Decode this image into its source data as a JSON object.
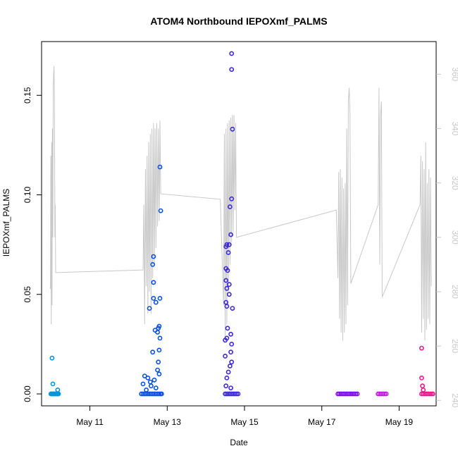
{
  "chart_data": {
    "type": "scatter",
    "title": "ATOM4 Northbound IEPOXmf_PALMS",
    "xlabel": "Date",
    "ylabel": "IEPOXmf_PALMS",
    "x_axis": {
      "type": "date",
      "range": [
        "2018-05-09T18:00",
        "2018-05-19T23:00"
      ],
      "ticks": [
        {
          "value": "2018-05-11",
          "label": "May 11"
        },
        {
          "value": "2018-05-13",
          "label": "May 13"
        },
        {
          "value": "2018-05-15",
          "label": "May 15"
        },
        {
          "value": "2018-05-17",
          "label": "May 17"
        },
        {
          "value": "2018-05-19",
          "label": "May 19"
        }
      ]
    },
    "y_axis": {
      "range": [
        -0.006,
        0.177
      ],
      "ticks": [
        {
          "value": 0.0,
          "label": "0.00"
        },
        {
          "value": 0.05,
          "label": "0.05"
        },
        {
          "value": 0.1,
          "label": "0.10"
        },
        {
          "value": 0.15,
          "label": "0.15"
        }
      ]
    },
    "y2_axis": {
      "range": [
        238,
        372
      ],
      "color": "#c8c8c8",
      "ticks": [
        {
          "value": 240,
          "label": "240"
        },
        {
          "value": 260,
          "label": "260"
        },
        {
          "value": 280,
          "label": "280"
        },
        {
          "value": 300,
          "label": "300"
        },
        {
          "value": 320,
          "label": "320"
        },
        {
          "value": 340,
          "label": "340"
        },
        {
          "value": 360,
          "label": "360"
        }
      ]
    },
    "grid": false,
    "legend": "none",
    "series": [
      {
        "color": "#0096dc",
        "points": [
          [
            "2018-05-10T00:30",
            0.018
          ],
          [
            "2018-05-10T01:00",
            0.005
          ],
          [
            "2018-05-10T04:00",
            0.002
          ],
          [
            "2018-05-09T23:50",
            0.0
          ],
          [
            "2018-05-10T00:10",
            0.0
          ],
          [
            "2018-05-10T00:40",
            0.0
          ],
          [
            "2018-05-10T01:10",
            0.0
          ],
          [
            "2018-05-10T01:40",
            0.0
          ],
          [
            "2018-05-10T02:10",
            0.0
          ],
          [
            "2018-05-10T02:40",
            0.0
          ],
          [
            "2018-05-10T03:10",
            0.0
          ],
          [
            "2018-05-10T03:40",
            0.0
          ],
          [
            "2018-05-10T04:10",
            0.0
          ],
          [
            "2018-05-10T04:30",
            0.0
          ]
        ]
      },
      {
        "color": "#0a50e6",
        "points": [
          [
            "2018-05-12T19:30",
            0.114
          ],
          [
            "2018-05-12T20:00",
            0.092
          ],
          [
            "2018-05-12T15:30",
            0.069
          ],
          [
            "2018-05-12T15:00",
            0.065
          ],
          [
            "2018-05-12T15:30",
            0.056
          ],
          [
            "2018-05-12T15:30",
            0.048
          ],
          [
            "2018-05-12T19:30",
            0.048
          ],
          [
            "2018-05-12T17:00",
            0.046
          ],
          [
            "2018-05-12T13:00",
            0.043
          ],
          [
            "2018-05-12T19:00",
            0.034
          ],
          [
            "2018-05-12T18:30",
            0.033
          ],
          [
            "2018-05-12T16:30",
            0.032
          ],
          [
            "2018-05-12T18:00",
            0.031
          ],
          [
            "2018-05-12T19:30",
            0.028
          ],
          [
            "2018-05-12T19:00",
            0.022
          ],
          [
            "2018-05-12T15:00",
            0.021
          ],
          [
            "2018-05-12T18:30",
            0.016
          ],
          [
            "2018-05-12T18:00",
            0.012
          ],
          [
            "2018-05-12T19:00",
            0.01
          ],
          [
            "2018-05-12T10:00",
            0.009
          ],
          [
            "2018-05-12T12:00",
            0.008
          ],
          [
            "2018-05-12T16:00",
            0.007
          ],
          [
            "2018-05-12T13:30",
            0.006
          ],
          [
            "2018-05-12T09:00",
            0.005
          ],
          [
            "2018-05-12T14:00",
            0.004
          ],
          [
            "2018-05-12T17:00",
            0.003
          ],
          [
            "2018-05-12T11:00",
            0.002
          ],
          [
            "2018-05-12T08:00",
            0.0
          ],
          [
            "2018-05-12T09:00",
            0.0
          ],
          [
            "2018-05-12T10:00",
            0.0
          ],
          [
            "2018-05-12T11:00",
            0.0
          ],
          [
            "2018-05-12T12:00",
            0.0
          ],
          [
            "2018-05-12T13:00",
            0.0
          ],
          [
            "2018-05-12T14:00",
            0.0
          ],
          [
            "2018-05-12T15:00",
            0.0
          ],
          [
            "2018-05-12T16:00",
            0.0
          ],
          [
            "2018-05-12T17:00",
            0.0
          ],
          [
            "2018-05-12T18:00",
            0.0
          ],
          [
            "2018-05-12T19:00",
            0.0
          ],
          [
            "2018-05-12T20:00",
            0.0
          ],
          [
            "2018-05-12T20:30",
            0.0
          ]
        ]
      },
      {
        "color": "#3c28dc",
        "points": [
          [
            "2018-05-14T16:00",
            0.171
          ],
          [
            "2018-05-14T16:00",
            0.163
          ],
          [
            "2018-05-14T16:30",
            0.133
          ],
          [
            "2018-05-14T16:00",
            0.098
          ],
          [
            "2018-05-14T15:00",
            0.094
          ],
          [
            "2018-05-14T15:30",
            0.08
          ],
          [
            "2018-05-14T13:00",
            0.075
          ],
          [
            "2018-05-14T14:30",
            0.075
          ],
          [
            "2018-05-14T12:30",
            0.074
          ],
          [
            "2018-05-14T14:00",
            0.071
          ],
          [
            "2018-05-14T12:30",
            0.063
          ],
          [
            "2018-05-14T13:30",
            0.062
          ],
          [
            "2018-05-14T12:30",
            0.057
          ],
          [
            "2018-05-14T14:30",
            0.055
          ],
          [
            "2018-05-14T13:00",
            0.053
          ],
          [
            "2018-05-14T14:30",
            0.05
          ],
          [
            "2018-05-14T12:30",
            0.046
          ],
          [
            "2018-05-14T13:00",
            0.044
          ],
          [
            "2018-05-14T16:30",
            0.043
          ],
          [
            "2018-05-14T13:30",
            0.033
          ],
          [
            "2018-05-14T15:30",
            0.03
          ],
          [
            "2018-05-14T12:00",
            0.027
          ],
          [
            "2018-05-14T13:00",
            0.028
          ],
          [
            "2018-05-14T16:00",
            0.025
          ],
          [
            "2018-05-14T15:30",
            0.021
          ],
          [
            "2018-05-14T12:00",
            0.019
          ],
          [
            "2018-05-14T16:00",
            0.016
          ],
          [
            "2018-05-14T15:00",
            0.014
          ],
          [
            "2018-05-14T14:00",
            0.011
          ],
          [
            "2018-05-14T13:00",
            0.008
          ],
          [
            "2018-05-14T12:30",
            0.004
          ],
          [
            "2018-05-14T15:30",
            0.003
          ],
          [
            "2018-05-14T12:00",
            0.0
          ],
          [
            "2018-05-14T13:00",
            0.0
          ],
          [
            "2018-05-14T14:00",
            0.0
          ],
          [
            "2018-05-14T15:00",
            0.0
          ],
          [
            "2018-05-14T16:00",
            0.0
          ],
          [
            "2018-05-14T17:00",
            0.0
          ],
          [
            "2018-05-14T18:00",
            0.0
          ],
          [
            "2018-05-14T19:00",
            0.0
          ],
          [
            "2018-05-14T20:00",
            0.0
          ]
        ]
      },
      {
        "color": "#7d0af0",
        "points": [
          [
            "2018-05-17T10:00",
            0.0
          ],
          [
            "2018-05-17T11:00",
            0.0
          ],
          [
            "2018-05-17T12:00",
            0.0
          ],
          [
            "2018-05-17T13:00",
            0.0
          ],
          [
            "2018-05-17T14:00",
            0.0
          ],
          [
            "2018-05-17T15:00",
            0.0
          ],
          [
            "2018-05-17T16:00",
            0.0
          ],
          [
            "2018-05-17T17:00",
            0.0
          ],
          [
            "2018-05-17T18:00",
            0.0
          ],
          [
            "2018-05-17T19:00",
            0.0
          ],
          [
            "2018-05-17T20:00",
            0.0
          ],
          [
            "2018-05-17T21:00",
            0.0
          ],
          [
            "2018-05-17T22:00",
            0.0
          ]
        ]
      },
      {
        "color": "#c814e6",
        "points": [
          [
            "2018-05-18T11:00",
            0.0
          ],
          [
            "2018-05-18T12:00",
            0.0
          ],
          [
            "2018-05-18T13:00",
            0.0
          ],
          [
            "2018-05-18T14:00",
            0.0
          ],
          [
            "2018-05-18T15:00",
            0.0
          ],
          [
            "2018-05-18T16:00",
            0.0
          ]
        ]
      },
      {
        "color": "#f0148c",
        "points": [
          [
            "2018-05-19T14:00",
            0.023
          ],
          [
            "2018-05-19T14:00",
            0.008
          ],
          [
            "2018-05-19T14:30",
            0.004
          ],
          [
            "2018-05-19T15:00",
            0.002
          ],
          [
            "2018-05-19T14:00",
            0.0
          ],
          [
            "2018-05-19T15:00",
            0.0
          ],
          [
            "2018-05-19T16:00",
            0.0
          ],
          [
            "2018-05-19T17:00",
            0.0
          ],
          [
            "2018-05-19T18:00",
            0.0
          ],
          [
            "2018-05-19T19:00",
            0.0
          ],
          [
            "2018-05-19T20:00",
            0.0
          ],
          [
            "2018-05-19T21:00",
            0.0
          ]
        ]
      }
    ],
    "secondary_series": {
      "axis": "y2",
      "color": "#c8c8c8",
      "type": "line",
      "points": [
        [
          "2018-05-09T23:30",
          281
        ],
        [
          "2018-05-09T23:45",
          330
        ],
        [
          "2018-05-10T00:00",
          268
        ],
        [
          "2018-05-10T00:15",
          335
        ],
        [
          "2018-05-10T00:30",
          275
        ],
        [
          "2018-05-10T00:45",
          340
        ],
        [
          "2018-05-10T01:00",
          300
        ],
        [
          "2018-05-10T01:15",
          355
        ],
        [
          "2018-05-10T01:30",
          360
        ],
        [
          "2018-05-10T01:45",
          363
        ],
        [
          "2018-05-10T02:00",
          350
        ],
        [
          "2018-05-10T02:15",
          300
        ],
        [
          "2018-05-10T02:30",
          312
        ],
        [
          "2018-05-10T02:45",
          287
        ],
        [
          "2018-05-12T09:00",
          288
        ],
        [
          "2018-05-12T09:30",
          312
        ],
        [
          "2018-05-12T10:00",
          268
        ],
        [
          "2018-05-12T10:30",
          325
        ],
        [
          "2018-05-12T11:00",
          282
        ],
        [
          "2018-05-12T11:30",
          330
        ],
        [
          "2018-05-12T12:00",
          272
        ],
        [
          "2018-05-12T12:30",
          335
        ],
        [
          "2018-05-12T13:00",
          280
        ],
        [
          "2018-05-12T13:30",
          338
        ],
        [
          "2018-05-12T14:00",
          272
        ],
        [
          "2018-05-12T14:30",
          340
        ],
        [
          "2018-05-12T15:00",
          285
        ],
        [
          "2018-05-12T15:30",
          342
        ],
        [
          "2018-05-12T16:00",
          290
        ],
        [
          "2018-05-12T16:30",
          340
        ],
        [
          "2018-05-12T17:00",
          296
        ],
        [
          "2018-05-12T17:30",
          342
        ],
        [
          "2018-05-12T18:00",
          304
        ],
        [
          "2018-05-12T18:30",
          340
        ],
        [
          "2018-05-12T19:00",
          306
        ],
        [
          "2018-05-12T19:30",
          343
        ],
        [
          "2018-05-12T20:00",
          316
        ],
        [
          "2018-05-14T09:00",
          314
        ],
        [
          "2018-05-14T11:00",
          275
        ],
        [
          "2018-05-14T11:30",
          338
        ],
        [
          "2018-05-14T12:00",
          262
        ],
        [
          "2018-05-14T12:30",
          340
        ],
        [
          "2018-05-14T13:00",
          268
        ],
        [
          "2018-05-14T13:30",
          342
        ],
        [
          "2018-05-14T14:00",
          280
        ],
        [
          "2018-05-14T14:30",
          343
        ],
        [
          "2018-05-14T15:00",
          290
        ],
        [
          "2018-05-14T15:30",
          344
        ],
        [
          "2018-05-14T16:00",
          298
        ],
        [
          "2018-05-14T16:30",
          345
        ],
        [
          "2018-05-14T17:00",
          302
        ],
        [
          "2018-05-14T17:30",
          345
        ],
        [
          "2018-05-14T18:00",
          310
        ],
        [
          "2018-05-14T18:30",
          342
        ],
        [
          "2018-05-14T19:00",
          300
        ],
        [
          "2018-05-17T09:00",
          310
        ],
        [
          "2018-05-17T10:00",
          285
        ],
        [
          "2018-05-17T10:30",
          324
        ],
        [
          "2018-05-17T11:00",
          270
        ],
        [
          "2018-05-17T11:30",
          325
        ],
        [
          "2018-05-17T12:00",
          265
        ],
        [
          "2018-05-17T12:30",
          322
        ],
        [
          "2018-05-17T13:00",
          262
        ],
        [
          "2018-05-17T13:30",
          318
        ],
        [
          "2018-05-17T14:00",
          265
        ],
        [
          "2018-05-17T14:30",
          320
        ],
        [
          "2018-05-17T15:00",
          268
        ],
        [
          "2018-05-17T15:30",
          340
        ],
        [
          "2018-05-17T16:00",
          275
        ],
        [
          "2018-05-17T16:30",
          350
        ],
        [
          "2018-05-17T17:00",
          355
        ],
        [
          "2018-05-17T17:30",
          345
        ],
        [
          "2018-05-17T18:00",
          283
        ],
        [
          "2018-05-18T11:00",
          312
        ],
        [
          "2018-05-18T11:30",
          355
        ],
        [
          "2018-05-18T12:00",
          290
        ],
        [
          "2018-05-18T12:30",
          345
        ],
        [
          "2018-05-18T13:00",
          350
        ],
        [
          "2018-05-18T13:30",
          278
        ],
        [
          "2018-05-19T13:00",
          312
        ],
        [
          "2018-05-19T13:30",
          330
        ],
        [
          "2018-05-19T14:00",
          265
        ],
        [
          "2018-05-19T14:30",
          328
        ],
        [
          "2018-05-19T15:00",
          270
        ],
        [
          "2018-05-19T15:30",
          325
        ],
        [
          "2018-05-19T16:00",
          262
        ],
        [
          "2018-05-19T16:30",
          335
        ],
        [
          "2018-05-19T17:00",
          266
        ],
        [
          "2018-05-19T17:30",
          320
        ],
        [
          "2018-05-19T18:00",
          270
        ],
        [
          "2018-05-19T18:30",
          325
        ],
        [
          "2018-05-19T19:00",
          268
        ],
        [
          "2018-05-19T19:30",
          322
        ],
        [
          "2018-05-19T20:00",
          282
        ]
      ]
    }
  }
}
